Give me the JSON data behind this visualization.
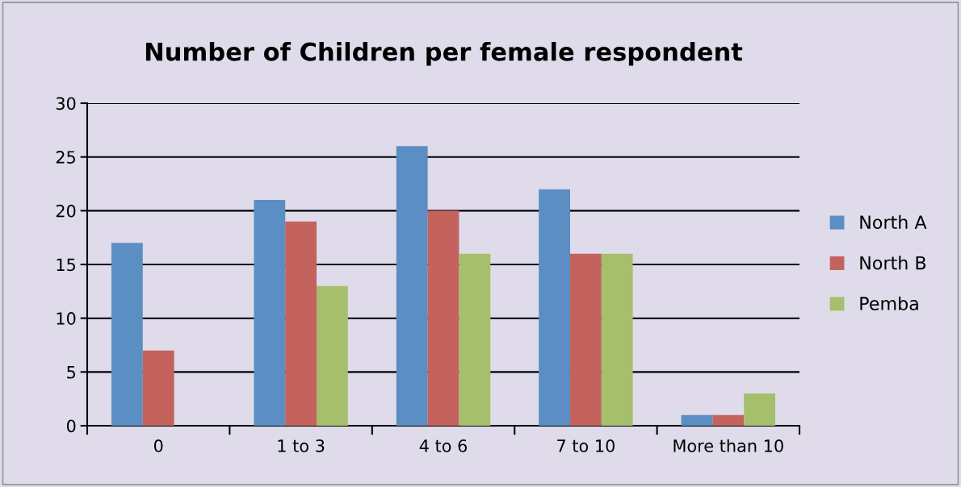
{
  "chart_data": {
    "type": "bar",
    "title": "Number of Children per female respondent",
    "categories": [
      "0",
      "1 to 3",
      "4 to 6",
      "7 to 10",
      "More than 10"
    ],
    "series": [
      {
        "name": "North A",
        "color": "#5b8ec2",
        "values": [
          17,
          21,
          26,
          22,
          1
        ]
      },
      {
        "name": "North B",
        "color": "#c4625e",
        "values": [
          7,
          19,
          20,
          16,
          1
        ]
      },
      {
        "name": "Pemba",
        "color": "#a6bf6c",
        "values": [
          0,
          13,
          16,
          16,
          3
        ]
      }
    ],
    "ylim": [
      0,
      30
    ],
    "yticks": [
      0,
      5,
      10,
      15,
      20,
      25,
      30
    ],
    "grid": "y",
    "legend": "right"
  }
}
